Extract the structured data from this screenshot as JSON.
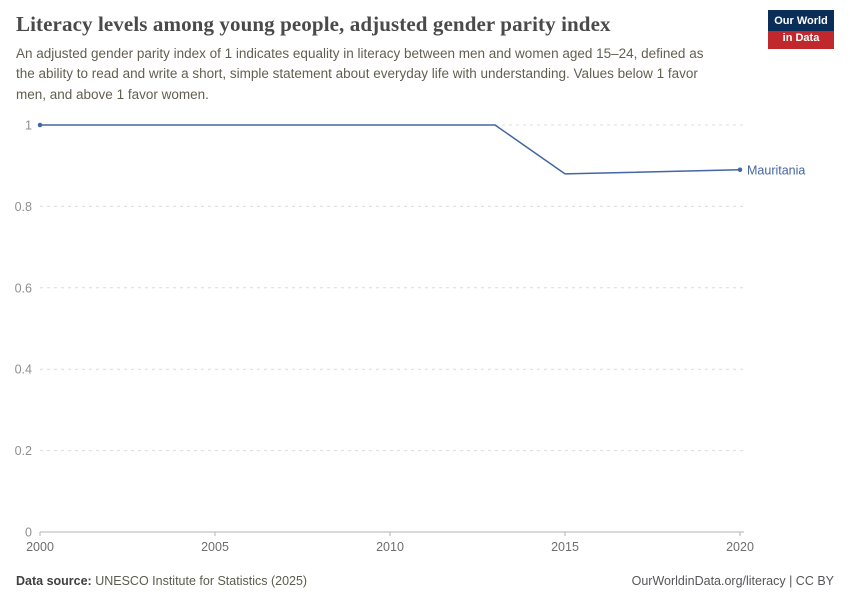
{
  "header": {
    "title": "Literacy levels among young people, adjusted gender parity index",
    "subtitle": "An adjusted gender parity index of 1 indicates equality in literacy between men and women aged 15–24, defined as the ability to read and write a short, simple statement about everyday life with understanding. Values below 1 favor men, and above 1 favor women.",
    "logo": {
      "line1": "Our World",
      "line2": "in Data",
      "bg_color": "#0b2e59",
      "accent_color": "#c0282d"
    }
  },
  "footer": {
    "source_label": "Data source:",
    "source_text": " UNESCO Institute for Statistics (2025)",
    "link_text": "OurWorldinData.org/literacy | CC BY"
  },
  "chart_data": {
    "type": "line",
    "title": "Literacy levels among young people, adjusted gender parity index",
    "xlabel": "",
    "ylabel": "",
    "xlim": [
      2000,
      2020
    ],
    "ylim": [
      0,
      1
    ],
    "x_ticks": [
      2000,
      2005,
      2010,
      2015,
      2020
    ],
    "y_ticks": [
      0,
      0.2,
      0.4,
      0.6,
      0.8,
      1
    ],
    "grid": "horizontal-dashed",
    "gridline_color": "#dcdcdc",
    "axis_color": "#b3b3b3",
    "y_tick_label_color": "#8f8f8f",
    "x_tick_label_color": "#6e6e6e",
    "legend_position": "end-of-line-label",
    "series": [
      {
        "name": "Mauritania",
        "color": "#4466a3",
        "points": [
          {
            "x": 2000,
            "y": 1.0
          },
          {
            "x": 2013,
            "y": 1.0
          },
          {
            "x": 2015,
            "y": 0.88
          },
          {
            "x": 2020,
            "y": 0.89
          }
        ]
      }
    ]
  }
}
